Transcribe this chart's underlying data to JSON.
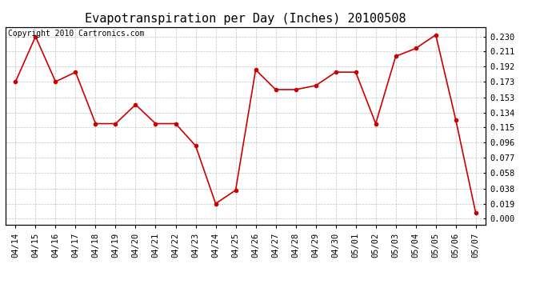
{
  "title": "Evapotranspiration per Day (Inches) 20100508",
  "copyright": "Copyright 2010 Cartronics.com",
  "dates": [
    "04/14",
    "04/15",
    "04/16",
    "04/17",
    "04/18",
    "04/19",
    "04/20",
    "04/21",
    "04/22",
    "04/23",
    "04/24",
    "04/25",
    "04/26",
    "04/27",
    "04/28",
    "04/29",
    "04/30",
    "05/01",
    "05/02",
    "05/03",
    "05/04",
    "05/05",
    "05/06",
    "05/07"
  ],
  "values": [
    0.173,
    0.23,
    0.173,
    0.185,
    0.12,
    0.12,
    0.144,
    0.12,
    0.12,
    0.092,
    0.019,
    0.036,
    0.188,
    0.163,
    0.163,
    0.168,
    0.185,
    0.185,
    0.12,
    0.205,
    0.215,
    0.232,
    0.125,
    0.007
  ],
  "yticks": [
    0.0,
    0.019,
    0.038,
    0.058,
    0.077,
    0.096,
    0.115,
    0.134,
    0.153,
    0.173,
    0.192,
    0.211,
    0.23
  ],
  "line_color": "#cc0000",
  "marker": "o",
  "background_color": "#ffffff",
  "grid_color": "#bbbbbb",
  "title_fontsize": 11,
  "copyright_fontsize": 7,
  "tick_fontsize": 7.5,
  "ylim": [
    -0.008,
    0.242
  ]
}
